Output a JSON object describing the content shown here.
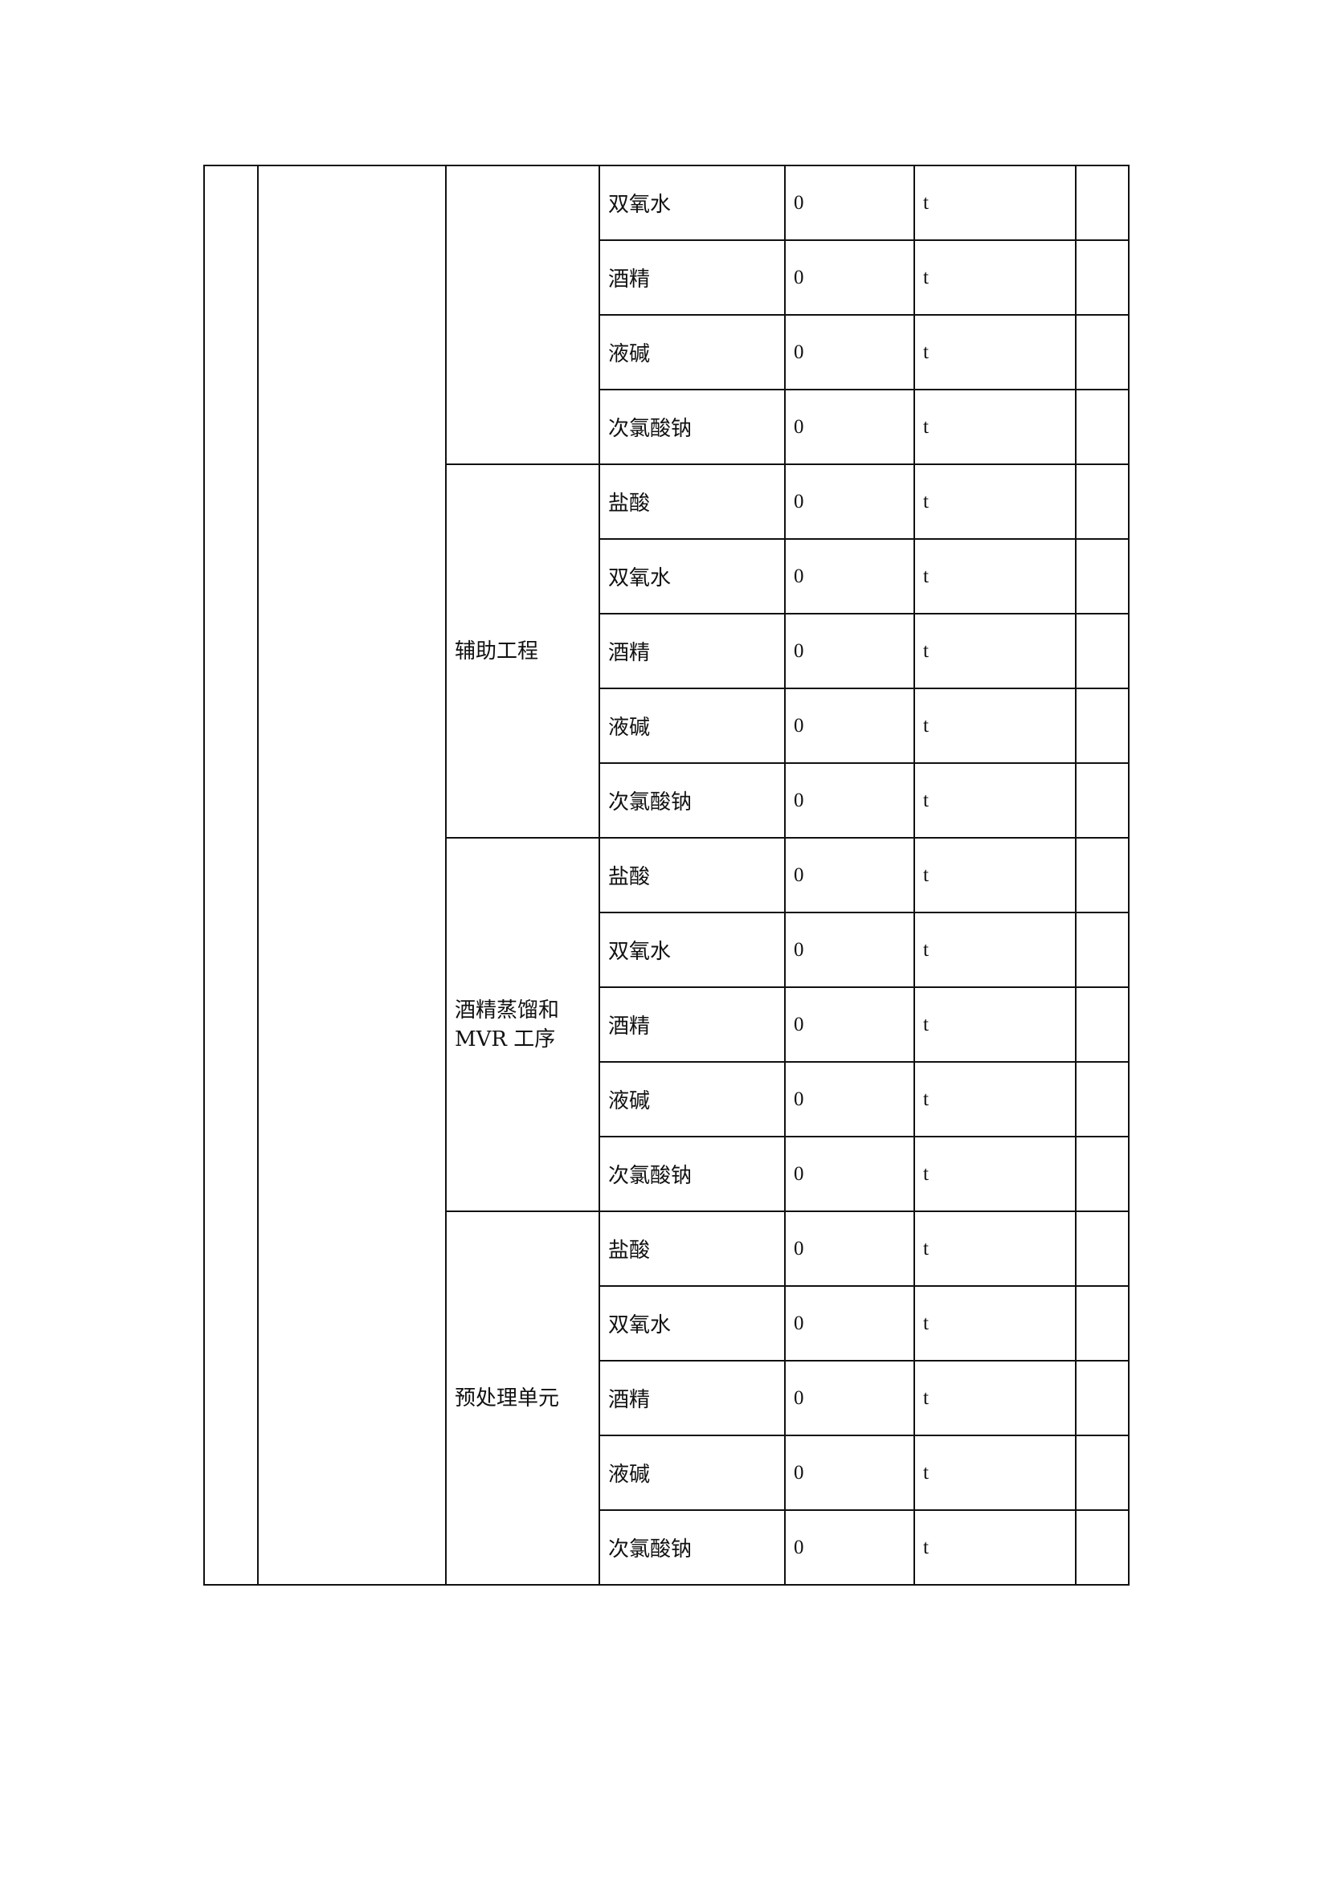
{
  "groups": [
    {
      "name": "",
      "rows": [
        {
          "item": "双氧水",
          "value": "0",
          "unit": "t"
        },
        {
          "item": "酒精",
          "value": "0",
          "unit": "t"
        },
        {
          "item": "液碱",
          "value": "0",
          "unit": "t"
        },
        {
          "item": "次氯酸钠",
          "value": "0",
          "unit": "t"
        }
      ]
    },
    {
      "name": "辅助工程",
      "rows": [
        {
          "item": "盐酸",
          "value": "0",
          "unit": "t"
        },
        {
          "item": "双氧水",
          "value": "0",
          "unit": "t"
        },
        {
          "item": "酒精",
          "value": "0",
          "unit": "t"
        },
        {
          "item": "液碱",
          "value": "0",
          "unit": "t"
        },
        {
          "item": "次氯酸钠",
          "value": "0",
          "unit": "t"
        }
      ]
    },
    {
      "name": "酒精蒸馏和MVR 工序",
      "rows": [
        {
          "item": "盐酸",
          "value": "0",
          "unit": "t"
        },
        {
          "item": "双氧水",
          "value": "0",
          "unit": "t"
        },
        {
          "item": "酒精",
          "value": "0",
          "unit": "t"
        },
        {
          "item": "液碱",
          "value": "0",
          "unit": "t"
        },
        {
          "item": "次氯酸钠",
          "value": "0",
          "unit": "t"
        }
      ]
    },
    {
      "name": "预处理单元",
      "rows": [
        {
          "item": "盐酸",
          "value": "0",
          "unit": "t"
        },
        {
          "item": "双氧水",
          "value": "0",
          "unit": "t"
        },
        {
          "item": "酒精",
          "value": "0",
          "unit": "t"
        },
        {
          "item": "液碱",
          "value": "0",
          "unit": "t"
        },
        {
          "item": "次氯酸钠",
          "value": "0",
          "unit": "t"
        }
      ]
    }
  ]
}
